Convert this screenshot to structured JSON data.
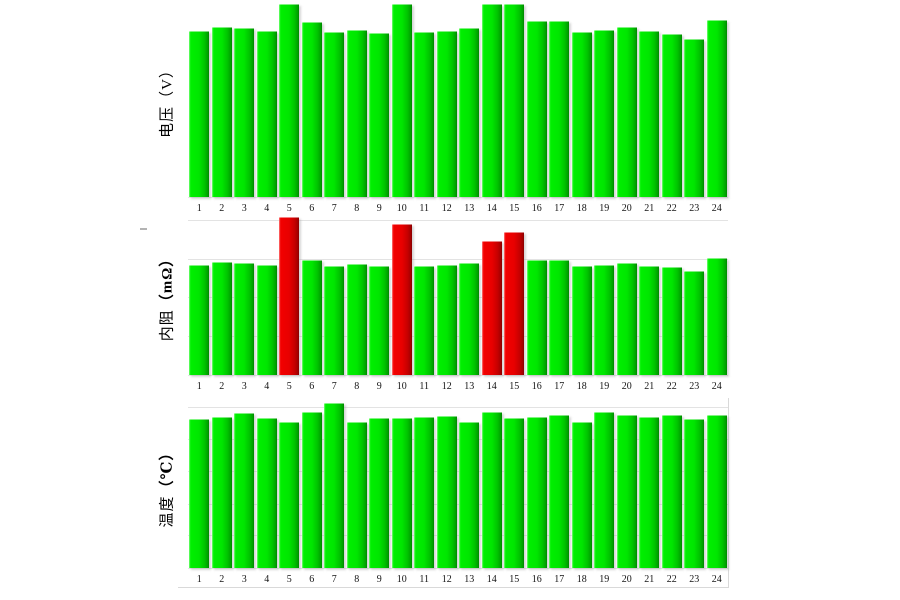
{
  "page": {
    "background": "#ffffff"
  },
  "note": "No numeric y-axis labels are shown in the source; bar heights are estimated as percent of each panel's plot height.",
  "chart_data": [
    {
      "type": "bar",
      "id": "voltage",
      "title": "",
      "ylabel": "电压（V）",
      "ylabel_name": "电压",
      "ylabel_unit": "（V）",
      "unit_bold": false,
      "xlabel": "",
      "grid": "off",
      "legend": "none",
      "ylim": [
        0,
        100
      ],
      "categories": [
        "1",
        "2",
        "3",
        "4",
        "5",
        "6",
        "7",
        "8",
        "9",
        "10",
        "11",
        "12",
        "13",
        "14",
        "15",
        "16",
        "17",
        "18",
        "19",
        "20",
        "21",
        "22",
        "23",
        "24"
      ],
      "heights_pct": [
        85.1,
        87.1,
        86.6,
        85.1,
        99.0,
        89.7,
        84.5,
        85.6,
        84.0,
        99.0,
        84.5,
        85.1,
        86.6,
        99.0,
        99.0,
        90.2,
        90.2,
        84.5,
        85.6,
        87.1,
        85.1,
        83.5,
        80.9,
        90.7
      ],
      "statuses": [
        "normal",
        "normal",
        "normal",
        "normal",
        "normal",
        "normal",
        "normal",
        "normal",
        "normal",
        "normal",
        "normal",
        "normal",
        "normal",
        "normal",
        "normal",
        "normal",
        "normal",
        "normal",
        "normal",
        "normal",
        "normal",
        "normal",
        "normal",
        "normal"
      ],
      "alarm_cells": [],
      "colors": {
        "normal": "#00e400",
        "alarm": "#e60000"
      }
    },
    {
      "type": "bar",
      "id": "resistance",
      "title": "",
      "ylabel": "内阻（mΩ）",
      "ylabel_name": "内阻",
      "ylabel_unit": "（mΩ）",
      "unit_bold": true,
      "xlabel": "",
      "grid": "on",
      "legend": "none",
      "ylim": [
        0,
        100
      ],
      "categories": [
        "1",
        "2",
        "3",
        "4",
        "5",
        "6",
        "7",
        "8",
        "9",
        "10",
        "11",
        "12",
        "13",
        "14",
        "15",
        "16",
        "17",
        "18",
        "19",
        "20",
        "21",
        "22",
        "23",
        "24"
      ],
      "heights_pct": [
        69.0,
        70.9,
        70.3,
        69.0,
        99.4,
        72.2,
        68.4,
        69.6,
        68.4,
        94.9,
        68.4,
        69.0,
        70.3,
        84.2,
        89.9,
        72.2,
        72.2,
        68.4,
        69.0,
        70.3,
        68.4,
        67.7,
        65.2,
        73.4
      ],
      "statuses": [
        "normal",
        "normal",
        "normal",
        "normal",
        "alarm",
        "normal",
        "normal",
        "normal",
        "normal",
        "alarm",
        "normal",
        "normal",
        "normal",
        "alarm",
        "alarm",
        "normal",
        "normal",
        "normal",
        "normal",
        "normal",
        "normal",
        "normal",
        "normal",
        "normal"
      ],
      "alarm_cells": [
        5,
        10,
        14,
        15
      ],
      "colors": {
        "normal": "#00e400",
        "alarm": "#e60000"
      }
    },
    {
      "type": "bar",
      "id": "temperature",
      "title": "",
      "ylabel": "温度（℃）",
      "ylabel_name": "温度",
      "ylabel_unit": "（℃）",
      "unit_bold": true,
      "xlabel": "",
      "grid": "on",
      "legend": "none",
      "ylim": [
        0,
        100
      ],
      "categories": [
        "1",
        "2",
        "3",
        "4",
        "5",
        "6",
        "7",
        "8",
        "9",
        "10",
        "11",
        "12",
        "13",
        "14",
        "15",
        "16",
        "17",
        "18",
        "19",
        "20",
        "21",
        "22",
        "23",
        "24"
      ],
      "heights_pct": [
        89.7,
        90.9,
        93.3,
        90.3,
        87.9,
        93.9,
        99.4,
        87.9,
        90.3,
        90.3,
        90.9,
        91.5,
        87.9,
        93.9,
        90.3,
        90.9,
        92.1,
        87.9,
        93.9,
        92.1,
        90.9,
        92.1,
        89.7,
        92.1
      ],
      "statuses": [
        "normal",
        "normal",
        "normal",
        "normal",
        "normal",
        "normal",
        "normal",
        "normal",
        "normal",
        "normal",
        "normal",
        "normal",
        "normal",
        "normal",
        "normal",
        "normal",
        "normal",
        "normal",
        "normal",
        "normal",
        "normal",
        "normal",
        "normal",
        "normal"
      ],
      "alarm_cells": [],
      "colors": {
        "normal": "#00e400",
        "alarm": "#e60000"
      }
    }
  ]
}
